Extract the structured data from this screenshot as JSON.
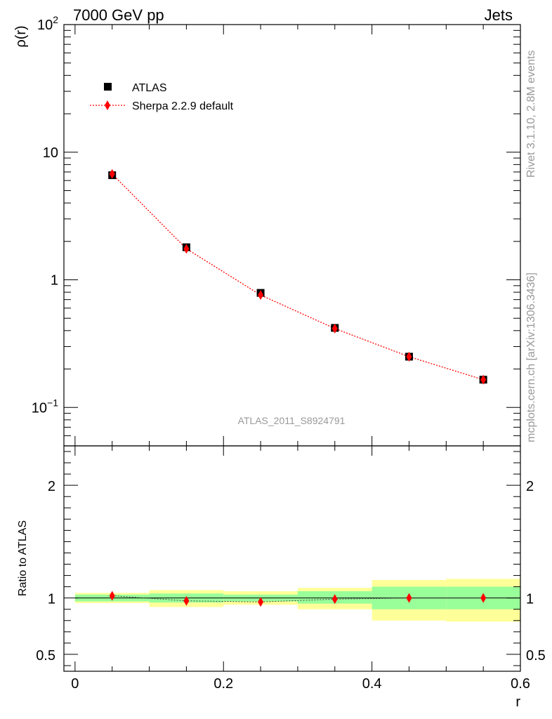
{
  "header": {
    "left_title": "7000 GeV pp",
    "right_title": "Jets"
  },
  "side_labels": {
    "rivet": "Rivet 3.1.10,  2.8M events",
    "source": "mcplots.cern.ch [arXiv:1306.3436]"
  },
  "analysis_label": "ATLAS_2011_S8924791",
  "colors": {
    "data_marker": "#000000",
    "mc_line": "#ff0000",
    "mc_marker": "#ff0000",
    "band_inner": "#99ff99",
    "band_outer": "#ffff99"
  },
  "chart_data": [
    {
      "type": "line",
      "panel": "main",
      "xlabel": "",
      "ylabel": "ρ(r)",
      "yscale": "log",
      "ylim": [
        0.05,
        100
      ],
      "xlim": [
        -0.015,
        0.6
      ],
      "ytick_labels": [
        "10^-1",
        "1",
        "10",
        "10^2"
      ],
      "legend_position": "top-left",
      "series": [
        {
          "name": "ATLAS",
          "marker": "square",
          "x": [
            0.05,
            0.15,
            0.25,
            0.35,
            0.45,
            0.55
          ],
          "values": [
            6.6,
            1.8,
            0.79,
            0.42,
            0.25,
            0.165
          ]
        },
        {
          "name": "Sherpa 2.2.9 default",
          "marker": "diamond",
          "line": "dotted",
          "x": [
            0.05,
            0.15,
            0.25,
            0.35,
            0.45,
            0.55
          ],
          "values": [
            6.75,
            1.75,
            0.76,
            0.415,
            0.25,
            0.165
          ]
        }
      ]
    },
    {
      "type": "line",
      "panel": "ratio",
      "xlabel": "r",
      "ylabel": "Ratio to ATLAS",
      "ylim": [
        0.35,
        2.35
      ],
      "xlim": [
        -0.015,
        0.6
      ],
      "x_ticks": [
        0,
        0.2,
        0.4,
        0.6
      ],
      "x_tick_labels": [
        "0",
        "0.2",
        "0.4",
        "0.6"
      ],
      "y_ticks": [
        0.5,
        1,
        2
      ],
      "y_tick_labels": [
        "0.5",
        "1",
        "2"
      ],
      "bins": [
        [
          0.0,
          0.1
        ],
        [
          0.1,
          0.2
        ],
        [
          0.2,
          0.3
        ],
        [
          0.3,
          0.4
        ],
        [
          0.4,
          0.5
        ],
        [
          0.5,
          0.6
        ]
      ],
      "band_inner": [
        [
          0.97,
          1.03
        ],
        [
          0.96,
          1.04
        ],
        [
          0.97,
          1.03
        ],
        [
          0.95,
          1.06
        ],
        [
          0.9,
          1.1
        ],
        [
          0.9,
          1.1
        ]
      ],
      "band_outer": [
        [
          0.955,
          1.045
        ],
        [
          0.92,
          1.07
        ],
        [
          0.94,
          1.06
        ],
        [
          0.9,
          1.09
        ],
        [
          0.8,
          1.16
        ],
        [
          0.79,
          1.17
        ]
      ],
      "series": [
        {
          "name": "Sherpa 2.2.9 default",
          "marker": "diamond",
          "x": [
            0.05,
            0.15,
            0.25,
            0.35,
            0.45,
            0.55
          ],
          "values": [
            1.02,
            0.975,
            0.965,
            0.99,
            1.0,
            1.0
          ]
        }
      ]
    }
  ]
}
